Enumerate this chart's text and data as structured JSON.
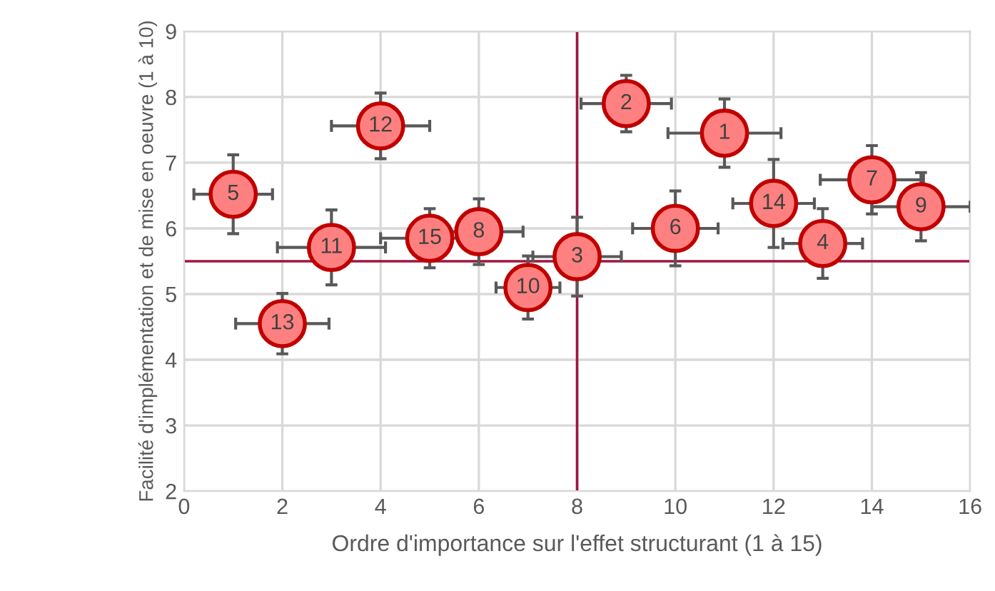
{
  "chart_data": {
    "type": "scatter",
    "xlabel": "Ordre d'importance sur l'effet structurant (1 à 15)",
    "ylabel": "Facilité d'implémentation et de mise en oeuvre (1 à 10)",
    "series": [
      {
        "color": "#ff8080",
        "x": [
          11,
          9,
          8,
          13,
          1,
          10,
          14,
          6,
          15,
          7,
          3,
          4,
          2,
          12,
          5
        ],
        "values": [
          7.45,
          7.9,
          5.57,
          5.77,
          6.52,
          6.0,
          6.74,
          5.95,
          6.33,
          5.1,
          5.71,
          7.56,
          4.55,
          6.38,
          5.85
        ],
        "errors": [
          0.52,
          0.43,
          0.6,
          0.53,
          0.6,
          0.57,
          0.52,
          0.5,
          0.52,
          0.48,
          0.57,
          0.5,
          0.46,
          0.67,
          0.45
        ],
        "xerrors": [
          1.15,
          0.92,
          0.9,
          0.81,
          0.8,
          0.87,
          1.05,
          0.9,
          1.0,
          0.65,
          1.1,
          1.0,
          0.95,
          0.83,
          1.0
        ]
      }
    ],
    "annotations": [
      {
        "text": "1",
        "x": 11,
        "y": 7.45
      },
      {
        "text": "2",
        "x": 9,
        "y": 7.9
      },
      {
        "text": "3",
        "x": 8,
        "y": 5.57
      },
      {
        "text": "4",
        "x": 13,
        "y": 5.77
      },
      {
        "text": "5",
        "x": 1,
        "y": 6.52
      },
      {
        "text": "6",
        "x": 10,
        "y": 6.0
      },
      {
        "text": "7",
        "x": 14,
        "y": 6.74
      },
      {
        "text": "8",
        "x": 6,
        "y": 5.95
      },
      {
        "text": "9",
        "x": 15,
        "y": 6.33
      },
      {
        "text": "10",
        "x": 7,
        "y": 5.1
      },
      {
        "text": "11",
        "x": 3,
        "y": 5.71
      },
      {
        "text": "12",
        "x": 4,
        "y": 7.56
      },
      {
        "text": "13",
        "x": 2,
        "y": 4.55
      },
      {
        "text": "14",
        "x": 12,
        "y": 6.38
      },
      {
        "text": "15",
        "x": 5,
        "y": 5.85
      }
    ],
    "ref_lines": [
      {
        "axis": "x",
        "value": 8,
        "color": "#a0153e"
      },
      {
        "axis": "y",
        "value": 5.5,
        "color": "#a0153e"
      }
    ],
    "xlim": [
      0,
      16
    ],
    "xticks": [
      0,
      2,
      4,
      6,
      8,
      10,
      12,
      14,
      16
    ],
    "ylim": [
      2,
      9
    ],
    "yticks": [
      2,
      3,
      4,
      5,
      6,
      7,
      8,
      9
    ],
    "grid": true,
    "marker": "circle"
  }
}
